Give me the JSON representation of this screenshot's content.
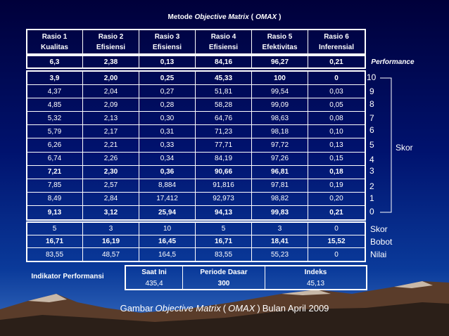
{
  "title": [
    "Metode",
    "Objective Matrix",
    "(",
    "OMAX",
    ")"
  ],
  "headers": [
    [
      "Rasio 1",
      "Kualitas"
    ],
    [
      "Rasio 2",
      "Efisiensi"
    ],
    [
      "Rasio 3",
      "Efisiensi"
    ],
    [
      "Rasio 4",
      "Efisiensi"
    ],
    [
      "Rasio 5",
      "Efektivitas"
    ],
    [
      "Rasio 6",
      "Inferensial"
    ]
  ],
  "performance": {
    "label": "Performance",
    "values": [
      "6,3",
      "2,38",
      "0,13",
      "84,16",
      "96,27",
      "0,21"
    ]
  },
  "score_rows": [
    [
      "3,9",
      "2,00",
      "0,25",
      "45,33",
      "100",
      "0"
    ],
    [
      "4,37",
      "2,04",
      "0,27",
      "51,81",
      "99,54",
      "0,03"
    ],
    [
      "4,85",
      "2,09",
      "0,28",
      "58,28",
      "99,09",
      "0,05"
    ],
    [
      "5,32",
      "2,13",
      "0,30",
      "64,76",
      "98,63",
      "0,08"
    ],
    [
      "5,79",
      "2,17",
      "0,31",
      "71,23",
      "98,18",
      "0,10"
    ],
    [
      "6,26",
      "2,21",
      "0,33",
      "77,71",
      "97,72",
      "0,13"
    ],
    [
      "6,74",
      "2,26",
      "0,34",
      "84,19",
      "97,26",
      "0,15"
    ],
    [
      "7,21",
      "2,30",
      "0,36",
      "90,66",
      "96,81",
      "0,18"
    ],
    [
      "7,85",
      "2,57",
      "8,884",
      "91,816",
      "97,81",
      "0,19"
    ],
    [
      "8,49",
      "2,84",
      "17,412",
      "92,973",
      "98,82",
      "0,20"
    ],
    [
      "9,13",
      "3,12",
      "25,94",
      "94,13",
      "99,83",
      "0,21"
    ]
  ],
  "scale": [
    "10",
    "9",
    "8",
    "7",
    "6",
    "5",
    "4",
    "3",
    "2",
    "1",
    "0"
  ],
  "scale_label": "Skor",
  "bottom_rows": [
    {
      "label": "Skor",
      "values": [
        "5",
        "3",
        "10",
        "5",
        "3",
        "0"
      ]
    },
    {
      "label": "Bobot",
      "values": [
        "16,71",
        "16,19",
        "16,45",
        "16,71",
        "18,41",
        "15,52"
      ]
    },
    {
      "label": "Nilai",
      "values": [
        "83,55",
        "48,57",
        "164,5",
        "83,55",
        "55,23",
        "0"
      ]
    }
  ],
  "indicator": {
    "label": "Indikator Performansi",
    "columns": [
      {
        "head": "Saat Ini",
        "value": "435,4"
      },
      {
        "head": "Periode Dasar",
        "value": "300"
      },
      {
        "head": "Indeks",
        "value": "45,13"
      }
    ]
  },
  "caption": [
    "Gambar",
    "Objective Matrix",
    "(",
    "OMAX",
    ")",
    "Bulan April 2009"
  ]
}
